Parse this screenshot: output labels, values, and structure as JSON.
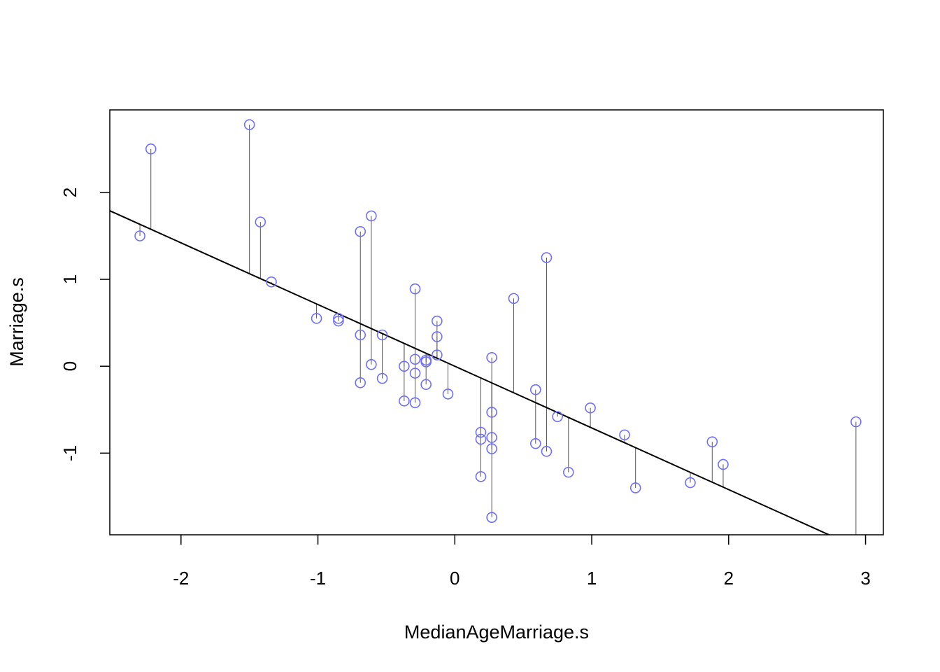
{
  "chart_data": {
    "type": "scatter",
    "title": "",
    "xlabel": "MedianAgeMarriage.s",
    "ylabel": "Marriage.s",
    "xlim": [
      -2.52,
      3.13
    ],
    "ylim": [
      -1.94,
      2.95
    ],
    "xticks": [
      -2,
      -1,
      0,
      1,
      2,
      3
    ],
    "yticks": [
      -1,
      0,
      1,
      2
    ],
    "grid": false,
    "point_color": "#6F6FFF",
    "line_color": "#000000",
    "residual_color": "#555555",
    "regression": {
      "intercept": 0.0,
      "slope": -0.71
    },
    "points": [
      {
        "x": -2.3,
        "y": 1.5
      },
      {
        "x": -2.22,
        "y": 2.5
      },
      {
        "x": -1.5,
        "y": 2.78
      },
      {
        "x": -1.42,
        "y": 1.66
      },
      {
        "x": -1.34,
        "y": 0.97
      },
      {
        "x": -1.01,
        "y": 0.55
      },
      {
        "x": -0.85,
        "y": 0.55
      },
      {
        "x": -0.85,
        "y": 0.52
      },
      {
        "x": -0.69,
        "y": 1.55
      },
      {
        "x": -0.69,
        "y": 0.36
      },
      {
        "x": -0.69,
        "y": -0.19
      },
      {
        "x": -0.61,
        "y": 1.73
      },
      {
        "x": -0.61,
        "y": 0.02
      },
      {
        "x": -0.53,
        "y": 0.36
      },
      {
        "x": -0.53,
        "y": -0.14
      },
      {
        "x": -0.37,
        "y": 0.0
      },
      {
        "x": -0.37,
        "y": -0.4
      },
      {
        "x": -0.29,
        "y": 0.89
      },
      {
        "x": -0.29,
        "y": 0.08
      },
      {
        "x": -0.29,
        "y": -0.08
      },
      {
        "x": -0.29,
        "y": -0.42
      },
      {
        "x": -0.21,
        "y": 0.07
      },
      {
        "x": -0.21,
        "y": 0.05
      },
      {
        "x": -0.21,
        "y": -0.21
      },
      {
        "x": -0.13,
        "y": 0.52
      },
      {
        "x": -0.13,
        "y": 0.34
      },
      {
        "x": -0.13,
        "y": 0.13
      },
      {
        "x": -0.05,
        "y": -0.32
      },
      {
        "x": 0.19,
        "y": -0.76
      },
      {
        "x": 0.19,
        "y": -0.84
      },
      {
        "x": 0.19,
        "y": -1.27
      },
      {
        "x": 0.27,
        "y": 0.1
      },
      {
        "x": 0.27,
        "y": -0.53
      },
      {
        "x": 0.27,
        "y": -0.82
      },
      {
        "x": 0.27,
        "y": -0.95
      },
      {
        "x": 0.27,
        "y": -1.74
      },
      {
        "x": 0.43,
        "y": 0.78
      },
      {
        "x": 0.59,
        "y": -0.27
      },
      {
        "x": 0.59,
        "y": -0.89
      },
      {
        "x": 0.67,
        "y": 1.25
      },
      {
        "x": 0.67,
        "y": -0.98
      },
      {
        "x": 0.75,
        "y": -0.58
      },
      {
        "x": 0.83,
        "y": -1.22
      },
      {
        "x": 0.99,
        "y": -0.48
      },
      {
        "x": 1.24,
        "y": -0.79
      },
      {
        "x": 1.32,
        "y": -1.4
      },
      {
        "x": 1.72,
        "y": -1.34
      },
      {
        "x": 1.88,
        "y": -0.87
      },
      {
        "x": 1.96,
        "y": -1.13
      },
      {
        "x": 2.93,
        "y": -0.64
      }
    ]
  }
}
